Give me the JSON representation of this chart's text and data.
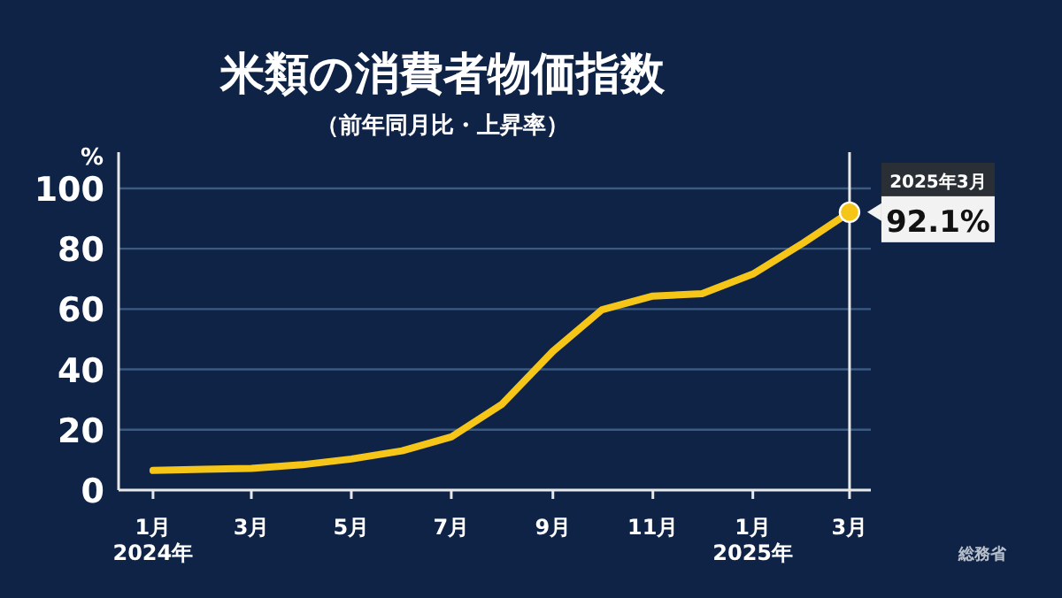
{
  "chart_data": {
    "type": "line",
    "title": "米類の消費者物価指数",
    "subtitle": "（前年同月比・上昇率）",
    "ylabel": "%",
    "x": [
      "2024-01",
      "2024-02",
      "2024-03",
      "2024-04",
      "2024-05",
      "2024-06",
      "2024-07",
      "2024-08",
      "2024-09",
      "2024-10",
      "2024-11",
      "2024-12",
      "2025-01",
      "2025-02",
      "2025-03"
    ],
    "series": [
      {
        "color": "#f5c518",
        "values": [
          6.5,
          6.9,
          7.2,
          8.4,
          10.3,
          13,
          17.6,
          28.5,
          46,
          59.8,
          64.3,
          65.1,
          71.6,
          82.0,
          92.1
        ]
      },
      {
        "type": "scatter",
        "color": "#f5c518",
        "x": [
          "2025-03"
        ],
        "values": [
          92.1
        ],
        "value_labels": [
          "92.1%"
        ]
      }
    ],
    "xlim": [
      "2023-12-11",
      "2025-03-14"
    ],
    "xticks": [
      {
        "value": "2024-01",
        "label": "1月\n2024年"
      },
      {
        "value": "2024-03",
        "label": "3月"
      },
      {
        "value": "2024-05",
        "label": "5月"
      },
      {
        "value": "2024-07",
        "label": "7月"
      },
      {
        "value": "2024-09",
        "label": "9月"
      },
      {
        "value": "2024-11",
        "label": "11月"
      },
      {
        "value": "2025-01",
        "label": "1月\n2025年"
      },
      {
        "value": "2025-03",
        "label": "3月"
      }
    ],
    "ylim": [
      0,
      112
    ],
    "yticks": [
      0,
      20,
      40,
      60,
      80,
      100
    ],
    "grid": "y",
    "ref_lines": [
      {
        "axis": "x",
        "value": "2025-03",
        "color": "#e8e8e8"
      }
    ],
    "annotations": [
      {
        "text": "2025年3月",
        "x": "2025-03",
        "y": 92.1
      },
      "総務省"
    ]
  }
}
